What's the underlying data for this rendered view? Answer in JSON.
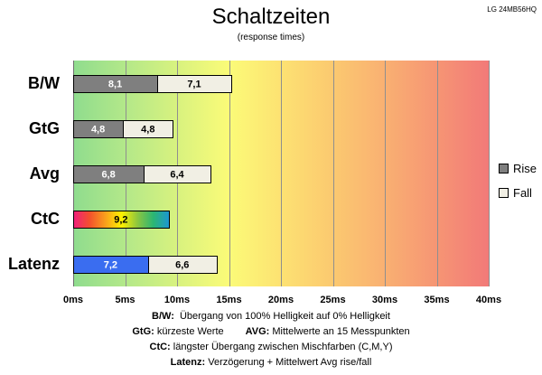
{
  "header": {
    "model": "LG 24MB56HQ"
  },
  "chart_data": {
    "type": "bar",
    "orientation": "horizontal",
    "stacked": true,
    "title": "Schaltzeiten",
    "subtitle": "(response times)",
    "categories": [
      "B/W",
      "GtG",
      "Avg",
      "CtC",
      "Latenz"
    ],
    "series": [
      {
        "name": "Rise",
        "color": "#7f7f7f",
        "values": [
          8.1,
          4.8,
          6.8,
          9.2,
          7.2
        ],
        "data_labels": [
          "8,1",
          "4,8",
          "6,8",
          "9,2",
          "7,2"
        ]
      },
      {
        "name": "Fall",
        "color": "#f1efe4",
        "values": [
          7.1,
          4.8,
          6.4,
          null,
          6.6
        ],
        "data_labels": [
          "7,1",
          "4,8",
          "6,4",
          null,
          "6,6"
        ]
      }
    ],
    "category_fills": {
      "CtC": [
        "#ef1f7c",
        "#f3502d",
        "#f9a01c",
        "#fff100",
        "#8cc63f",
        "#2bb673",
        "#1c96d4"
      ],
      "Latenz": "#3a6df0"
    },
    "xlim": [
      0,
      40
    ],
    "xticks": [
      0,
      5,
      10,
      15,
      20,
      25,
      30,
      35,
      40
    ],
    "xtick_labels": [
      "0ms",
      "5ms",
      "10ms",
      "15ms",
      "20ms",
      "25ms",
      "30ms",
      "35ms",
      "40ms"
    ],
    "grid": true,
    "legend": {
      "position": "right"
    }
  },
  "notes": [
    [
      {
        "key": "B/W:",
        "text": "Übergang von 100% Helligkeit auf 0% Helligkeit"
      }
    ],
    [
      {
        "key": "GtG:",
        "text": "kürzeste Werte"
      },
      {
        "key": "AVG:",
        "text": "Mittelwerte an 15 Messpunkten"
      }
    ],
    [
      {
        "key": "CtC:",
        "text": "längster Übergang zwischen Mischfarben (C,M,Y)"
      }
    ],
    [
      {
        "key": "Latenz:",
        "text": "Verzögerung + Mittelwert Avg rise/fall"
      }
    ]
  ]
}
